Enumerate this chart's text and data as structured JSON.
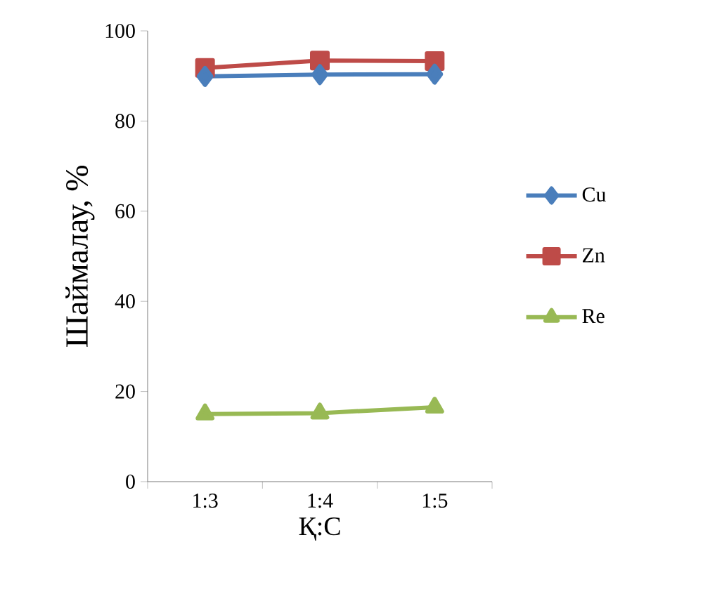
{
  "chart_data": {
    "type": "line",
    "xlabel": "Қ:С",
    "ylabel": "Шаймалау, %",
    "categories": [
      "1:3",
      "1:4",
      "1:5"
    ],
    "series": [
      {
        "name": "Cu",
        "color": "#4a7ebb",
        "marker": "diamond",
        "values": [
          89.9,
          90.3,
          90.4
        ]
      },
      {
        "name": "Zn",
        "color": "#be4b48",
        "marker": "square",
        "values": [
          91.8,
          93.4,
          93.3
        ]
      },
      {
        "name": "Re",
        "color": "#98b954",
        "marker": "triangle",
        "values": [
          15.0,
          15.2,
          16.5
        ]
      }
    ],
    "ylim": [
      0,
      100
    ],
    "yticks": [
      0,
      20,
      40,
      60,
      80,
      100
    ],
    "grid": false,
    "legend": "right"
  }
}
